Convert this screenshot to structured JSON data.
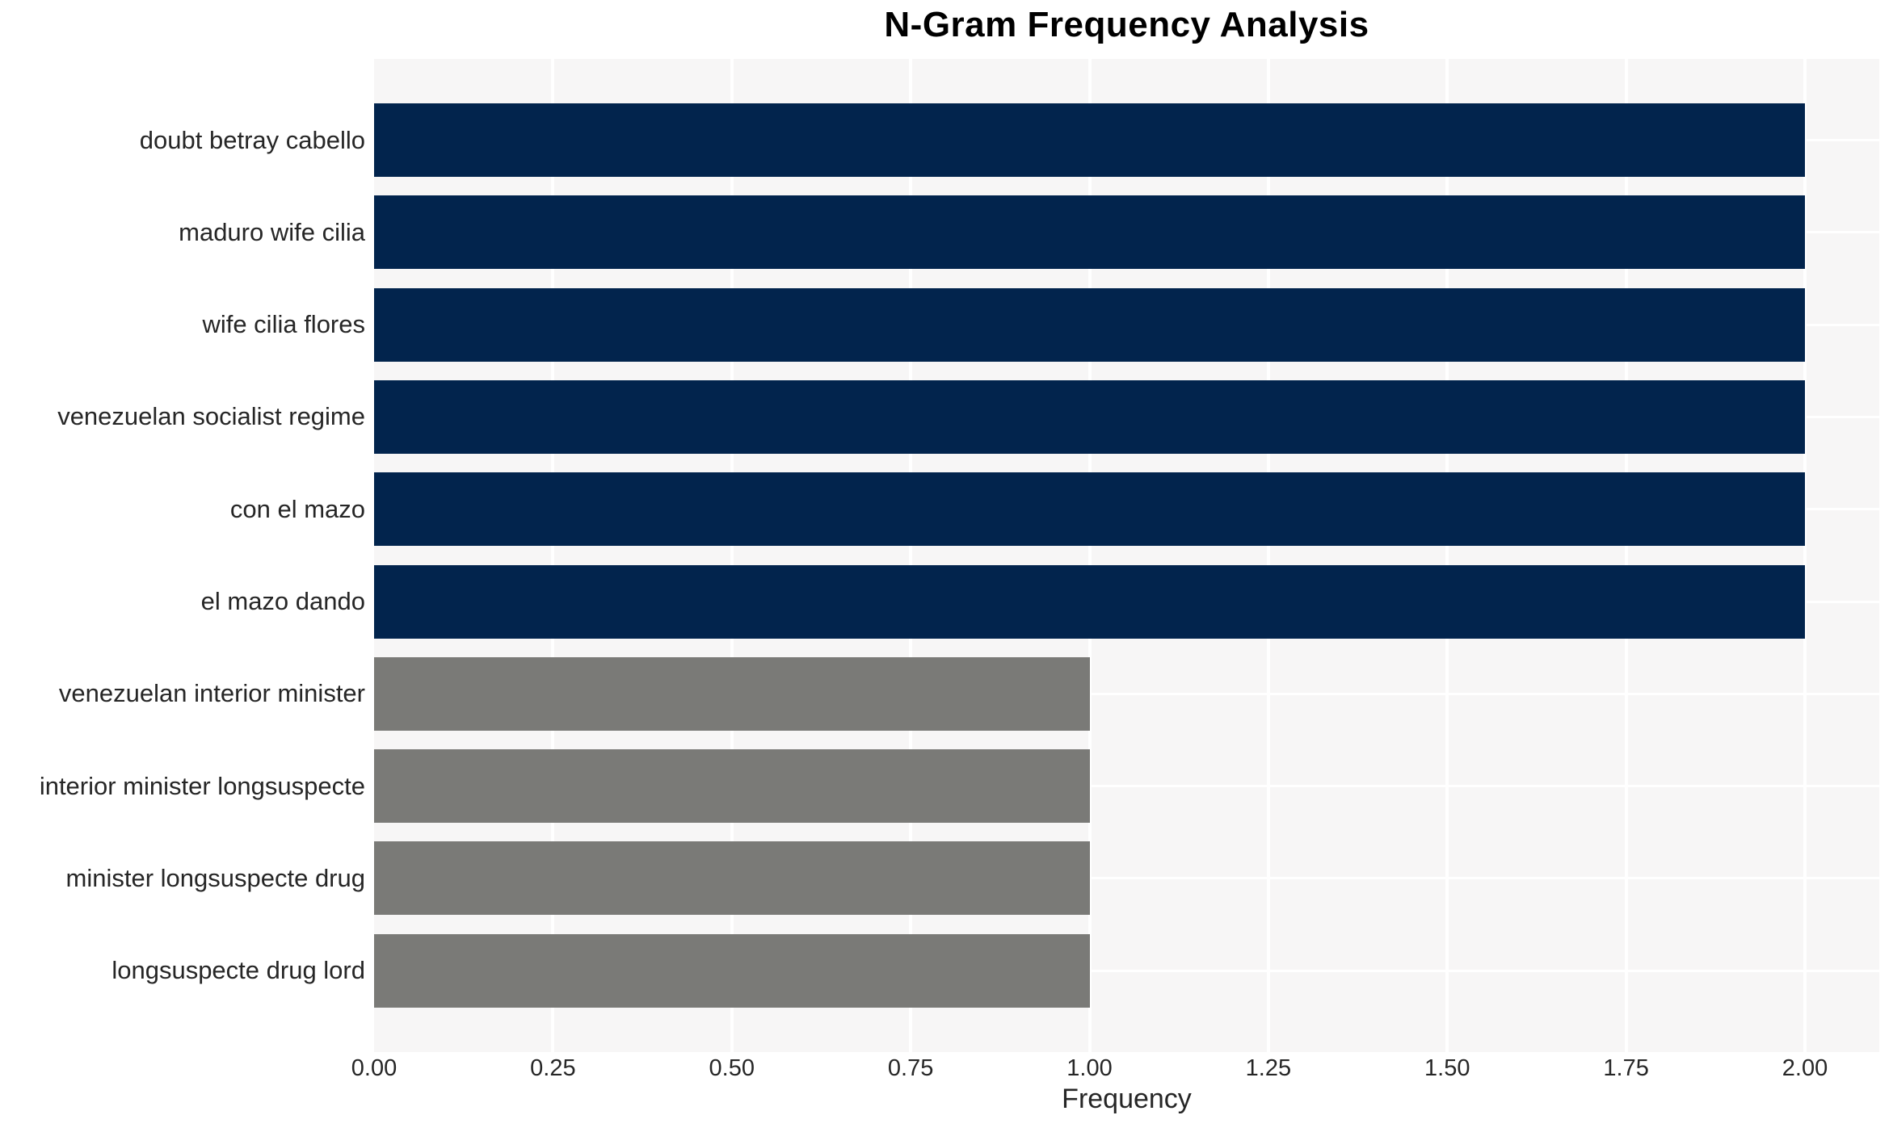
{
  "chart_data": {
    "type": "bar",
    "orientation": "horizontal",
    "title": "N-Gram Frequency Analysis",
    "xlabel": "Frequency",
    "ylabel": "",
    "categories": [
      "doubt betray cabello",
      "maduro wife cilia",
      "wife cilia flores",
      "venezuelan socialist regime",
      "con el mazo",
      "el mazo dando",
      "venezuelan interior minister",
      "interior minister longsuspecte",
      "minister longsuspecte drug",
      "longsuspecte drug lord"
    ],
    "values": [
      2,
      2,
      2,
      2,
      2,
      2,
      1,
      1,
      1,
      1
    ],
    "bar_colors": [
      "#02244d",
      "#02244d",
      "#02244d",
      "#02244d",
      "#02244d",
      "#02244d",
      "#7a7a77",
      "#7a7a77",
      "#7a7a77",
      "#7a7a77"
    ],
    "xticks": [
      "0.00",
      "0.25",
      "0.50",
      "0.75",
      "1.00",
      "1.25",
      "1.50",
      "1.75",
      "2.00"
    ],
    "xlim": [
      0,
      2.1
    ],
    "grid": true,
    "legend_position": "none",
    "colors": {
      "high_frequency_bar": "#02244d",
      "low_frequency_bar": "#7a7a77",
      "plot_background": "#f7f6f6",
      "gridline": "#ffffff",
      "tick_text": "#262626",
      "title_text": "#000000",
      "page_background": "#ffffff"
    }
  }
}
